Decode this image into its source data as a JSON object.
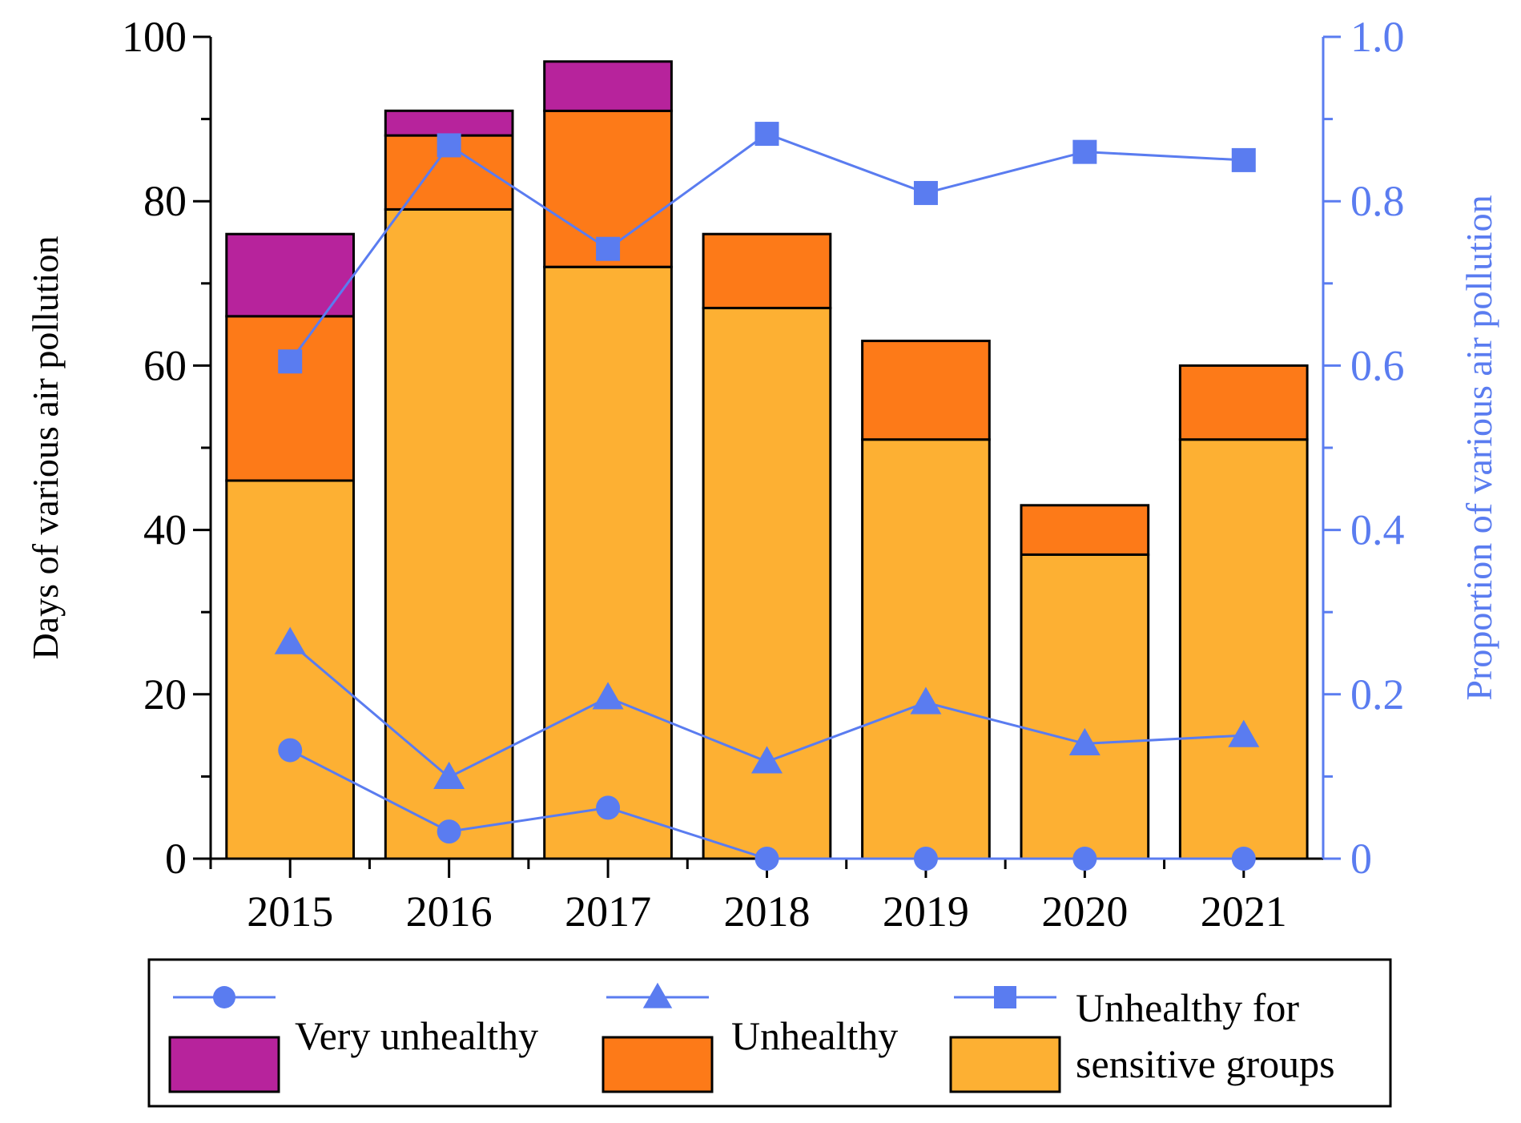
{
  "chart_data": {
    "type": "bar",
    "stacked": true,
    "categories": [
      "2015",
      "2016",
      "2017",
      "2018",
      "2019",
      "2020",
      "2021"
    ],
    "bar_series": [
      {
        "name": "Unhealthy for sensitive groups",
        "color": "#FDB033",
        "values": [
          46,
          79,
          72,
          67,
          51,
          37,
          51
        ]
      },
      {
        "name": "Unhealthy",
        "color": "#FD7A18",
        "values": [
          20,
          9,
          19,
          9,
          12,
          6,
          9
        ]
      },
      {
        "name": "Very unhealthy",
        "color": "#B7239C",
        "values": [
          10,
          3,
          6,
          0,
          0,
          0,
          0
        ]
      }
    ],
    "line_series": [
      {
        "name": "Very unhealthy",
        "marker": "circle",
        "values": [
          0.132,
          0.033,
          0.062,
          0.0,
          0.0,
          0.0,
          0.0
        ]
      },
      {
        "name": "Unhealthy",
        "marker": "triangle",
        "values": [
          0.263,
          0.099,
          0.196,
          0.118,
          0.19,
          0.14,
          0.15
        ]
      },
      {
        "name": "Unhealthy for sensitive groups",
        "marker": "square",
        "values": [
          0.605,
          0.868,
          0.742,
          0.882,
          0.81,
          0.86,
          0.85
        ]
      }
    ],
    "line_color": "#5A7CF0",
    "ylabel": "Days of various air pollution",
    "y2label": "Proportion of various air pollution",
    "ylim": [
      0,
      100
    ],
    "y2lim": [
      0,
      1.0
    ],
    "yticks": [
      "0",
      "20",
      "40",
      "60",
      "80",
      "100"
    ],
    "y2ticks": [
      "0",
      "0.2",
      "0.4",
      "0.6",
      "0.8",
      "1.0"
    ],
    "legend": {
      "position": "bottom",
      "entries": [
        {
          "label_lines": [
            "Very unhealthy"
          ],
          "bar_color": "#B7239C",
          "marker": "circle"
        },
        {
          "label_lines": [
            "Unhealthy"
          ],
          "bar_color": "#FD7A18",
          "marker": "triangle"
        },
        {
          "label_lines": [
            "Unhealthy for",
            "sensitive groups"
          ],
          "bar_color": "#FDB033",
          "marker": "square"
        }
      ]
    }
  }
}
